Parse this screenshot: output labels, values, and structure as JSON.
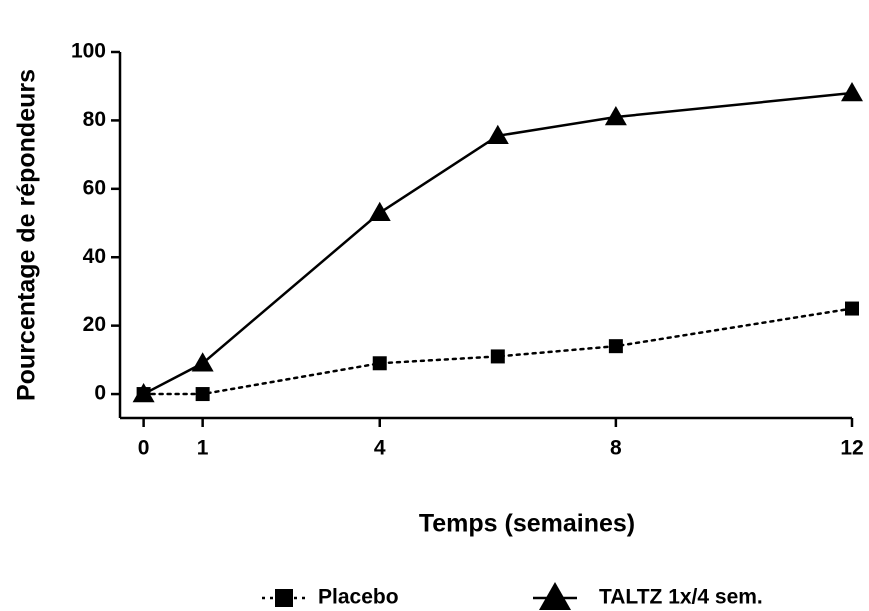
{
  "chart_data": {
    "type": "line",
    "x_label": "Temps (semaines)",
    "y_label": "Pourcentage de répondeurs",
    "x": [
      0,
      1,
      4,
      6,
      8,
      12
    ],
    "series": [
      {
        "name": "Placebo",
        "color": "#000000",
        "line_style": "dotted",
        "marker": "square",
        "values": [
          0,
          0,
          9,
          11,
          14,
          25
        ]
      },
      {
        "name": "TALTZ 1x/4 sem.",
        "color": "#000000",
        "line_style": "solid",
        "marker": "triangle",
        "values": [
          0,
          9,
          53,
          75.5,
          81,
          88
        ]
      }
    ],
    "xlim": [
      -0.4,
      12
    ],
    "xticks": [
      0,
      1,
      4,
      8,
      12
    ],
    "ylim": [
      -7,
      100
    ],
    "yticks": [
      0,
      20,
      40,
      60,
      80,
      100
    ],
    "legend": "bottom"
  }
}
